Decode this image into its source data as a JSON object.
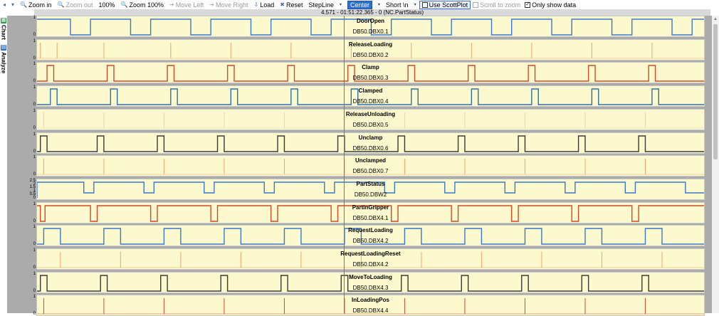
{
  "toolbar": {
    "zoom_in": "Zoom in",
    "zoom_out": "Zoom out",
    "zoom_100": "100%",
    "zoom_100_btn": "Zoom 100%",
    "move_left": "Move Left",
    "move_right": "Move Right",
    "load": "Load",
    "reset": "Reset",
    "chart_type": "StepLine",
    "align": "Center",
    "format": "Short \\n",
    "use_scottplot": "Use ScottPlot",
    "use_scottplot_checked": false,
    "scroll_to_zoom": "Scroll to zoom",
    "scroll_to_zoom_checked": false,
    "only_show_data": "Only show data",
    "only_show_data_checked": true
  },
  "status": "4.571 - 01:51:22.365 - 0 (NC.PartStatus)",
  "side_tabs": {
    "chart": "Chart",
    "analyze": "Analyze"
  },
  "colors": {
    "plot_bg": "#fbf9cd",
    "blue": "#3a78c9",
    "orange": "#f3a36a",
    "red": "#cf4a2a",
    "steel": "#2f6fa8",
    "tan": "#e8d7a8",
    "black": "#3a3a3a",
    "area": "#ababab"
  },
  "signals": [
    {
      "name": "DoorOpen",
      "addr": "DB50.DBX0.1",
      "color": "#3a78c9",
      "kind": "low-pulse",
      "ymax": "1",
      "ymin": "0",
      "edges": [
        0.05,
        0.08,
        0.14,
        0.17,
        0.23,
        0.26,
        0.32,
        0.35,
        0.41,
        0.44,
        0.5,
        0.53,
        0.59,
        0.62,
        0.68,
        0.71,
        0.77,
        0.8,
        0.86,
        0.89,
        0.95,
        0.98
      ]
    },
    {
      "name": "ReleaseLoading",
      "addr": "DB50.DBX0.2",
      "color": "#f3a36a",
      "kind": "spike",
      "ymax": "1",
      "ymin": "0",
      "edges": [
        0.005,
        0.03,
        0.1,
        0.2,
        0.29,
        0.38,
        0.47,
        0.56,
        0.65,
        0.74,
        0.83,
        0.92
      ]
    },
    {
      "name": "Clamp",
      "addr": "DB50.DBX0.3",
      "color": "#cf4a2a",
      "kind": "high-pulse",
      "ymax": "1",
      "ymin": "0",
      "edges": [
        0.015,
        0.025,
        0.105,
        0.115,
        0.195,
        0.205,
        0.285,
        0.295,
        0.375,
        0.385,
        0.465,
        0.475,
        0.555,
        0.565,
        0.645,
        0.655,
        0.735,
        0.745,
        0.825,
        0.835,
        0.915,
        0.925
      ]
    },
    {
      "name": "Clamped",
      "addr": "DB50.DBX0.4",
      "color": "#2f6fa8",
      "kind": "high-pulse",
      "ymax": "1",
      "ymin": "0",
      "edges": [
        0.02,
        0.03,
        0.11,
        0.12,
        0.2,
        0.21,
        0.29,
        0.3,
        0.38,
        0.39,
        0.47,
        0.48,
        0.56,
        0.57,
        0.65,
        0.66,
        0.74,
        0.75,
        0.83,
        0.84,
        0.92,
        0.93
      ]
    },
    {
      "name": "ReleaseUnloading",
      "addr": "DB50.DBX0.5",
      "color": "#e8d7a8",
      "kind": "spike",
      "ymax": "1",
      "ymin": "0",
      "edges": [
        0.01,
        0.1,
        0.19,
        0.28,
        0.37,
        0.46,
        0.55,
        0.64,
        0.73,
        0.82,
        0.91
      ]
    },
    {
      "name": "Unclamp",
      "addr": "DB50.DBX0.6",
      "color": "#3a3a3a",
      "kind": "high-pulse",
      "ymax": "1",
      "ymin": "0",
      "edges": [
        0.005,
        0.015,
        0.09,
        0.1,
        0.18,
        0.19,
        0.27,
        0.28,
        0.36,
        0.37,
        0.45,
        0.46,
        0.54,
        0.55,
        0.63,
        0.64,
        0.72,
        0.73,
        0.81,
        0.82,
        0.9,
        0.91
      ]
    },
    {
      "name": "Unclamped",
      "addr": "DB50.DBX0.7",
      "color": "#f3a36a",
      "kind": "spike",
      "ymax": "1",
      "ymin": "0",
      "edges": [
        0.01,
        0.1,
        0.19,
        0.28,
        0.37,
        0.46,
        0.55,
        0.64,
        0.73,
        0.82,
        0.91
      ]
    },
    {
      "name": "PartStatus",
      "addr": "DB50.DBW2",
      "color": "#3a78c9",
      "kind": "multi",
      "ymax": "2.5",
      "ymin": "0",
      "ticks": [
        "2.5",
        "2",
        "1.5",
        "1",
        "0.5",
        "0"
      ],
      "edges": [
        0.0,
        0.07,
        0.085,
        0.16,
        0.175,
        0.25,
        0.265,
        0.34,
        0.355,
        0.43,
        0.445,
        0.52,
        0.535,
        0.61,
        0.625,
        0.7,
        0.715,
        0.79,
        0.805,
        0.88,
        0.895,
        0.97
      ]
    },
    {
      "name": "PartInGripper",
      "addr": "DB50.DBX4.1",
      "color": "#cf4a2a",
      "kind": "low-pulse",
      "ymax": "1",
      "ymin": "0",
      "edges": [
        0.005,
        0.012,
        0.08,
        0.09,
        0.17,
        0.18,
        0.26,
        0.27,
        0.35,
        0.36,
        0.44,
        0.45,
        0.53,
        0.54,
        0.62,
        0.63,
        0.71,
        0.72,
        0.8,
        0.81,
        0.89,
        0.9
      ]
    },
    {
      "name": "RequestLoading",
      "addr": "DB50.DBX4.2",
      "color": "#3a78c9",
      "kind": "high-pulse",
      "ymax": "1",
      "ymin": "0",
      "edges": [
        0.01,
        0.035,
        0.1,
        0.125,
        0.19,
        0.215,
        0.28,
        0.305,
        0.37,
        0.395,
        0.46,
        0.485,
        0.55,
        0.575,
        0.64,
        0.665,
        0.73,
        0.755,
        0.82,
        0.845,
        0.91,
        0.935
      ]
    },
    {
      "name": "RequestLoadingReset",
      "addr": "DB50.DBX4.2",
      "color": "#f3a36a",
      "kind": "spike",
      "ymax": "1",
      "ymin": "0",
      "edges": [
        0.035,
        0.125,
        0.215,
        0.305,
        0.395,
        0.485,
        0.575,
        0.665,
        0.755,
        0.845,
        0.935
      ]
    },
    {
      "name": "MoveToLoading",
      "addr": "DB50.DBX4.3",
      "color": "#3a3a3a",
      "kind": "high-pulse",
      "ymax": "1",
      "ymin": "0",
      "edges": [
        0.005,
        0.015,
        0.095,
        0.105,
        0.185,
        0.195,
        0.275,
        0.285,
        0.365,
        0.375,
        0.455,
        0.465,
        0.545,
        0.555,
        0.635,
        0.645,
        0.725,
        0.735,
        0.815,
        0.825,
        0.905,
        0.915
      ]
    },
    {
      "name": "InLoadingPos",
      "addr": "DB50.DBX4.4",
      "color": "#cf4a2a",
      "kind": "spike",
      "ymax": "1",
      "ymin": "0",
      "edges": [
        0.01,
        0.1,
        0.19,
        0.28,
        0.37,
        0.46,
        0.55,
        0.64,
        0.73,
        0.82,
        0.91
      ]
    }
  ]
}
